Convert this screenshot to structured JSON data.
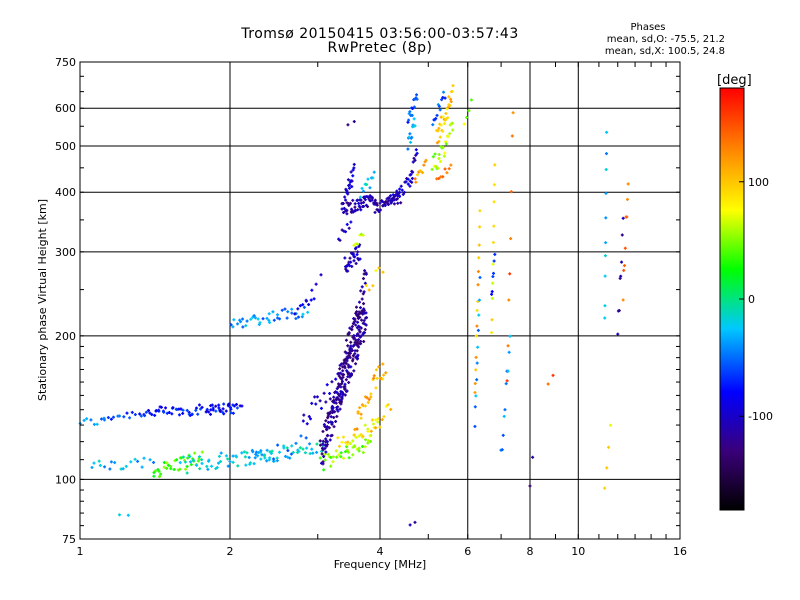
{
  "chart_data": {
    "type": "scatter",
    "title": "Tromsø 20150415 03:56:00-03:57:43",
    "subtitle": "RwPretec (8p)",
    "xlabel": "Frequency [MHz]",
    "ylabel": "Stationary phase Virtual Height [km]",
    "x_scale": "log",
    "y_scale": "log",
    "xlim": [
      1,
      16
    ],
    "ylim": [
      75,
      750
    ],
    "x_ticks": [
      1,
      2,
      4,
      6,
      8,
      10,
      16
    ],
    "y_ticks": [
      75,
      100,
      200,
      300,
      400,
      500,
      600,
      750
    ],
    "grid": true,
    "stats": {
      "heading": "Phases",
      "line_o": "mean, sd,O: -75.5, 21.2",
      "line_x": "mean, sd,X: 100.5, 24.8"
    },
    "colorbar": {
      "label": "[deg]",
      "range": [
        -180,
        180
      ],
      "ticks": [
        100,
        0,
        -100
      ],
      "colors": [
        "#000000",
        "#3a007a",
        "#0000ff",
        "#00c8ff",
        "#00ff00",
        "#ffff00",
        "#ff8000",
        "#ff0000"
      ]
    },
    "series": [
      {
        "segments": [
          [
            1.0,
            1.12,
            132,
            132,
            -40,
            8,
            0.02
          ],
          [
            1.12,
            1.35,
            135,
            138,
            -60,
            14,
            0.02
          ],
          [
            1.35,
            2.05,
            138,
            141,
            -75,
            60,
            0.025
          ],
          [
            1.8,
            2.12,
            141,
            142,
            -85,
            14,
            0.02
          ],
          [
            2.0,
            2.85,
            212,
            226,
            -40,
            40,
            0.03
          ],
          [
            2.7,
            2.95,
            226,
            240,
            -90,
            8,
            0.02
          ],
          [
            1.05,
            1.4,
            106,
            108,
            -30,
            18,
            0.03
          ],
          [
            1.4,
            1.75,
            104,
            111,
            40,
            34,
            0.035
          ],
          [
            1.6,
            2.4,
            107,
            113,
            -25,
            50,
            0.04
          ],
          [
            2.2,
            3.1,
            111,
            117,
            -20,
            40,
            0.035
          ],
          [
            2.4,
            2.9,
            112,
            122,
            -40,
            10,
            0.06
          ],
          [
            3.05,
            3.85,
            108,
            120,
            50,
            36,
            0.035
          ],
          [
            3.3,
            3.95,
            118,
            130,
            85,
            24,
            0.04
          ],
          [
            3.55,
            4.1,
            128,
            175,
            110,
            30,
            0.06
          ],
          [
            3.85,
            4.2,
            125,
            145,
            95,
            10,
            0.04
          ],
          [
            2.8,
            3.3,
            135,
            160,
            -100,
            20,
            0.05
          ],
          [
            3.05,
            3.75,
            115,
            220,
            -115,
            200,
            0.08
          ],
          [
            3.3,
            3.75,
            160,
            260,
            -120,
            70,
            0.07
          ],
          [
            3.4,
            3.65,
            280,
            300,
            -105,
            30,
            0.04
          ],
          [
            3.3,
            3.5,
            320,
            345,
            -100,
            8,
            0.02
          ],
          [
            3.55,
            3.7,
            305,
            330,
            60,
            6,
            0.02
          ],
          [
            3.75,
            4.05,
            250,
            280,
            90,
            6,
            0.03
          ],
          [
            3.35,
            3.9,
            368,
            385,
            -110,
            60,
            0.03
          ],
          [
            3.4,
            3.55,
            395,
            440,
            -100,
            20,
            0.04
          ],
          [
            3.65,
            3.9,
            395,
            430,
            -20,
            10,
            0.03
          ],
          [
            3.9,
            4.4,
            370,
            390,
            -110,
            40,
            0.03
          ],
          [
            4.2,
            4.65,
            380,
            430,
            -100,
            24,
            0.03
          ],
          [
            4.6,
            4.75,
            430,
            490,
            -100,
            10,
            0.02
          ],
          [
            4.7,
            4.95,
            420,
            460,
            115,
            10,
            0.02
          ],
          [
            4.55,
            4.7,
            500,
            560,
            -30,
            12,
            0.03
          ],
          [
            4.55,
            4.75,
            560,
            640,
            -60,
            14,
            0.03
          ],
          [
            5.2,
            5.55,
            420,
            460,
            140,
            8,
            0.02
          ],
          [
            5.1,
            5.6,
            450,
            540,
            60,
            24,
            0.05
          ],
          [
            5.2,
            5.6,
            520,
            640,
            100,
            28,
            0.05
          ],
          [
            5.1,
            5.4,
            560,
            640,
            -55,
            12,
            0.03
          ],
          [
            6.2,
            6.35,
            150,
            360,
            110,
            14,
            0.02
          ],
          [
            6.2,
            6.35,
            130,
            260,
            -40,
            10,
            0.02
          ],
          [
            6.7,
            6.8,
            200,
            450,
            80,
            10,
            0.02
          ],
          [
            6.7,
            6.8,
            240,
            300,
            -80,
            6,
            0.02
          ],
          [
            7.0,
            7.3,
            110,
            200,
            -40,
            10,
            0.05
          ],
          [
            7.2,
            7.4,
            170,
            590,
            140,
            8,
            0.08
          ],
          [
            8.0,
            8.1,
            95,
            110,
            -130,
            2,
            0.03
          ],
          [
            8.7,
            8.9,
            160,
            165,
            150,
            2,
            0.02
          ],
          [
            11.3,
            11.4,
            210,
            540,
            -30,
            10,
            0.04
          ],
          [
            12.0,
            12.3,
            200,
            340,
            -110,
            8,
            0.05
          ],
          [
            12.3,
            12.6,
            250,
            420,
            130,
            8,
            0.06
          ],
          [
            11.3,
            11.6,
            95,
            130,
            80,
            4,
            0.05
          ],
          [
            4.6,
            4.7,
            80,
            82,
            -110,
            2,
            0.01
          ],
          [
            1.2,
            1.25,
            84,
            84,
            -30,
            2,
            0.01
          ],
          [
            2.85,
            3.05,
            240,
            265,
            -90,
            4,
            0.02
          ],
          [
            3.45,
            3.55,
            550,
            560,
            -120,
            2,
            0.01
          ],
          [
            5.9,
            6.1,
            560,
            620,
            60,
            4,
            0.02
          ]
        ]
      }
    ]
  }
}
